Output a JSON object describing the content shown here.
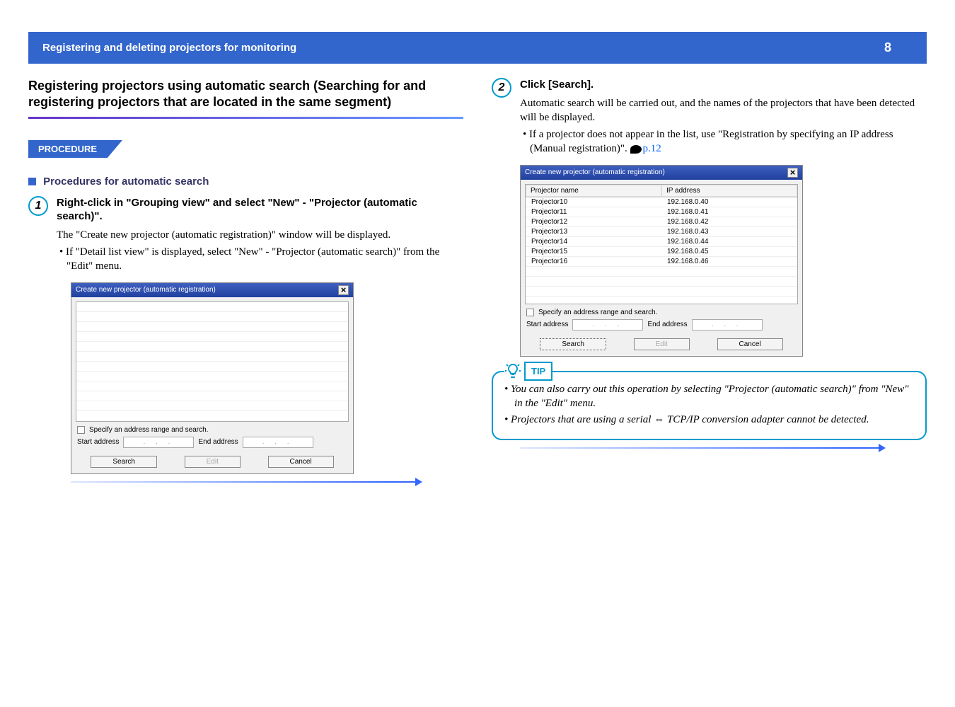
{
  "header": {
    "title": "Registering and deleting projectors for monitoring",
    "page": "8"
  },
  "left": {
    "section_title": "Registering projectors using automatic search (Searching for and registering projectors that are located in the same segment)",
    "procedure_label": "PROCEDURE",
    "sub_heading": "Procedures for automatic search",
    "step1": {
      "num": "1",
      "title": "Right-click in \"Grouping view\" and select \"New\" - \"Projector (automatic search)\".",
      "text": "The \"Create new projector (automatic registration)\" window will be displayed.",
      "bullet": "• If \"Detail list view\" is displayed, select \"New\" - \"Projector (automatic search)\" from the \"Edit\" menu."
    },
    "dialog": {
      "title": "Create new projector (automatic registration)",
      "range_label": "Specify an address range and search.",
      "start_label": "Start address",
      "end_label": "End address",
      "search_btn": "Search",
      "edit_btn": "Edit",
      "cancel_btn": "Cancel"
    }
  },
  "right": {
    "step2": {
      "num": "2",
      "title": "Click [Search].",
      "text": "Automatic search will be carried out, and the names of the projectors that have been detected will be displayed.",
      "bullet": "• If a projector does not appear in the list, use \"Registration by specifying an IP address (Manual registration)\".",
      "link": "p.12"
    },
    "dialog": {
      "title": "Create new projector (automatic registration)",
      "col1": "Projector name",
      "col2": "IP address",
      "rows": [
        {
          "name": "Projector10",
          "ip": "192.168.0.40"
        },
        {
          "name": "Projector11",
          "ip": "192.168.0.41"
        },
        {
          "name": "Projector12",
          "ip": "192.168.0.42"
        },
        {
          "name": "Projector13",
          "ip": "192.168.0.43"
        },
        {
          "name": "Projector14",
          "ip": "192.168.0.44"
        },
        {
          "name": "Projector15",
          "ip": "192.168.0.45"
        },
        {
          "name": "Projector16",
          "ip": "192.168.0.46"
        }
      ],
      "range_label": "Specify an address range and search.",
      "start_label": "Start address",
      "end_label": "End address",
      "search_btn": "Search",
      "edit_btn": "Edit",
      "cancel_btn": "Cancel"
    },
    "tip": {
      "label": "TIP",
      "item1": "• You can also carry out this operation by selecting \"Projector (automatic search)\" from \"New\" in the \"Edit\" menu.",
      "item2_a": "• Projectors that are using a serial ",
      "item2_arrow": "⇔",
      "item2_b": " TCP/IP conversion adapter cannot be detected."
    }
  }
}
